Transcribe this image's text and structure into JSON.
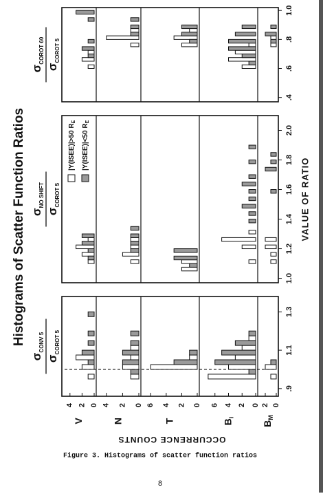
{
  "chart_data": {
    "type": "histogram",
    "title": "Histograms of Scatter Function Ratios",
    "y_label": "OCCURRENCE COUNTS",
    "x_label": "VALUE OF RATIO",
    "series": [
      {
        "name": "|Y(ISEE)|>50 R",
        "subscript": "E",
        "color": "#ffffff"
      },
      {
        "name": "|Y(ISEE)|<50 R",
        "subscript": "E",
        "color": "#9a9a9a"
      }
    ],
    "rows": [
      {
        "label": {
          "symbol": "V"
        },
        "ylim": [
          0,
          5
        ],
        "yticks": [
          0,
          2,
          4
        ]
      },
      {
        "label": {
          "symbol": "N"
        },
        "ylim": [
          0,
          5
        ],
        "yticks": [
          0,
          2,
          4
        ]
      },
      {
        "label": {
          "symbol": "T"
        },
        "ylim": [
          0,
          7
        ],
        "yticks": [
          0,
          2,
          4,
          6
        ]
      },
      {
        "label": {
          "symbol": "B",
          "subscript": "i"
        },
        "ylim": [
          0,
          8
        ],
        "yticks": [
          0,
          2,
          4,
          6
        ]
      },
      {
        "label": {
          "symbol": "B",
          "subscript": "M"
        },
        "ylim": [
          0,
          3
        ],
        "yticks": [
          0,
          2
        ]
      }
    ],
    "panels": [
      {
        "numerator": {
          "symbol": "σ",
          "subscript": "CONV 5"
        },
        "denominator": {
          "symbol": "σ",
          "subscript": "COROT 5"
        },
        "xlim": [
          0.86,
          1.38
        ],
        "xticks": [
          {
            "value": 0.9,
            "label": ".9"
          },
          1.1,
          1.3
        ],
        "reference_line": 1,
        "bins": [
          0.9,
          0.95,
          1.0,
          1.05,
          1.1,
          1.15,
          1.2,
          1.25,
          1.3
        ],
        "counts": [
          [
            [
              0,
              1,
              2,
              3,
              0,
              0,
              0,
              0
            ],
            [
              0,
              0,
              1,
              2,
              1,
              1,
              0,
              1
            ]
          ],
          [
            [
              0,
              1,
              2,
              1,
              1,
              0,
              0,
              0
            ],
            [
              0,
              1,
              2,
              2,
              1,
              1,
              0,
              0
            ]
          ],
          [
            [
              0,
              0,
              6,
              1,
              0,
              0,
              0,
              0
            ],
            [
              0,
              0,
              3,
              1,
              0,
              0,
              0,
              0
            ]
          ],
          [
            [
              0,
              7,
              4,
              3,
              2,
              1,
              0,
              0
            ],
            [
              0,
              1,
              6,
              5,
              3,
              1,
              0,
              0
            ]
          ],
          [
            [
              0,
              1,
              2,
              0,
              0,
              0,
              0,
              0
            ],
            [
              0,
              0,
              1,
              0,
              0,
              0,
              0,
              0
            ]
          ]
        ]
      },
      {
        "numerator": {
          "symbol": "σ",
          "subscript": "NO SHIFT"
        },
        "denominator": {
          "symbol": "σ",
          "subscript": "COROT 5"
        },
        "xlim": [
          0.97,
          2.1
        ],
        "xticks": [
          {
            "value": 1,
            "label": "1.0"
          },
          1.2,
          1.4,
          1.6,
          1.8,
          {
            "value": 2,
            "label": "2.0"
          }
        ],
        "bins": [
          1.0,
          1.05,
          1.1,
          1.15,
          1.2,
          1.25,
          1.3,
          1.35,
          1.4,
          1.45,
          1.5,
          1.55,
          1.6,
          1.65,
          1.7,
          1.75,
          1.8,
          1.85,
          1.9,
          1.95,
          2.0
        ],
        "counts": [
          [
            [
              0,
              0,
              1,
              2,
              3,
              1,
              0,
              0,
              0,
              0,
              0,
              0,
              0,
              0,
              0,
              0,
              0,
              0,
              0,
              0
            ],
            [
              0,
              0,
              1,
              1,
              2,
              2,
              0,
              0,
              0,
              0,
              0,
              0,
              0,
              0,
              0,
              0,
              0,
              0,
              0,
              0
            ]
          ],
          [
            [
              0,
              0,
              1,
              2,
              1,
              1,
              0,
              0,
              0,
              0,
              0,
              0,
              0,
              0,
              0,
              0,
              0,
              0,
              0,
              0
            ],
            [
              0,
              0,
              0,
              1,
              1,
              1,
              1,
              0,
              0,
              0,
              0,
              0,
              0,
              0,
              0,
              0,
              0,
              0,
              0,
              0
            ]
          ],
          [
            [
              0,
              2,
              2,
              0,
              0,
              0,
              0,
              0,
              0,
              0,
              0,
              0,
              0,
              0,
              0,
              0,
              0,
              0,
              0,
              0
            ],
            [
              0,
              1,
              3,
              3,
              0,
              0,
              0,
              0,
              0,
              0,
              0,
              0,
              0,
              0,
              0,
              0,
              0,
              0,
              0,
              0
            ]
          ],
          [
            [
              0,
              0,
              1,
              0,
              2,
              5,
              1,
              0,
              0,
              0,
              0,
              0,
              0,
              0,
              0,
              0,
              0,
              0,
              0,
              0
            ],
            [
              0,
              0,
              0,
              0,
              0,
              0,
              0,
              1,
              1,
              2,
              1,
              1,
              2,
              1,
              0,
              1,
              0,
              1,
              0,
              0
            ]
          ],
          [
            [
              0,
              0,
              1,
              1,
              2,
              2,
              0,
              0,
              0,
              0,
              0,
              0,
              0,
              0,
              0,
              0,
              0,
              0,
              0,
              0
            ],
            [
              0,
              0,
              0,
              0,
              0,
              0,
              0,
              0,
              0,
              0,
              0,
              1,
              0,
              0,
              2,
              1,
              1,
              0,
              0,
              0
            ]
          ]
        ]
      },
      {
        "numerator": {
          "symbol": "σ",
          "subscript": "COROT 60"
        },
        "denominator": {
          "symbol": "σ",
          "subscript": "COROT 5"
        },
        "xlim": [
          0.37,
          1.02
        ],
        "xticks": [
          {
            "value": 0.4,
            "label": ".4"
          },
          {
            "value": 0.6,
            "label": ".6"
          },
          {
            "value": 0.8,
            "label": ".8"
          },
          {
            "value": 1,
            "label": "1.0"
          }
        ],
        "bins": [
          0.4,
          0.45,
          0.5,
          0.55,
          0.6,
          0.65,
          0.7,
          0.75,
          0.8,
          0.85,
          0.9,
          0.95,
          1.0
        ],
        "counts": [
          [
            [
              0,
              0,
              0,
              0,
              1,
              2,
              1,
              0,
              0,
              0,
              0,
              0
            ],
            [
              0,
              0,
              0,
              0,
              0,
              1,
              2,
              1,
              0,
              0,
              1,
              3
            ]
          ],
          [
            [
              0,
              0,
              0,
              0,
              0,
              0,
              0,
              1,
              4,
              1,
              0,
              0
            ],
            [
              0,
              0,
              0,
              0,
              0,
              0,
              0,
              0,
              1,
              1,
              1,
              0
            ]
          ],
          [
            [
              0,
              0,
              0,
              0,
              0,
              0,
              0,
              2,
              3,
              1,
              0,
              0
            ],
            [
              0,
              0,
              0,
              0,
              0,
              0,
              0,
              1,
              2,
              2,
              0,
              0
            ]
          ],
          [
            [
              0,
              0,
              0,
              0,
              2,
              4,
              3,
              1,
              0,
              0,
              0,
              0
            ],
            [
              0,
              0,
              0,
              0,
              1,
              2,
              4,
              4,
              3,
              2,
              0,
              0
            ]
          ],
          [
            [
              0,
              0,
              0,
              0,
              0,
              0,
              0,
              1,
              1,
              0,
              0,
              0
            ],
            [
              0,
              0,
              0,
              0,
              0,
              0,
              0,
              1,
              2,
              1,
              0,
              0
            ]
          ]
        ]
      }
    ]
  },
  "caption": "Figure 3.  Histograms of scatter function ratios",
  "page_number": "8"
}
